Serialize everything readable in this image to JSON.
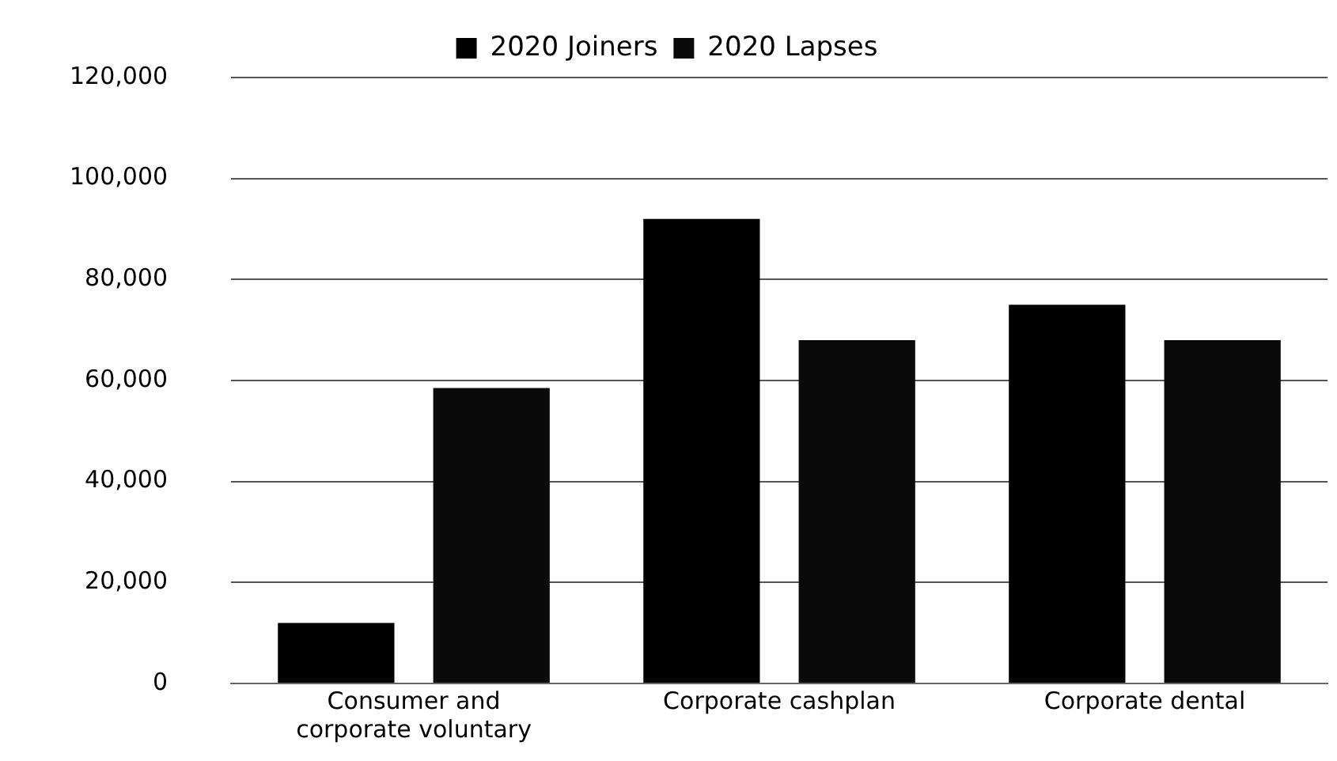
{
  "chart_data": {
    "type": "bar",
    "categories": [
      "Consumer and corporate voluntary",
      "Corporate cashplan",
      "Corporate dental"
    ],
    "series": [
      {
        "name": "2020 Joiners",
        "color": "#000000",
        "values": [
          12000,
          92000,
          75000
        ]
      },
      {
        "name": "2020 Lapses",
        "color": "#0a0a0a",
        "values": [
          58500,
          68000,
          68000
        ]
      }
    ],
    "ylim": [
      0,
      120000
    ],
    "yticks": [
      {
        "value": 0,
        "label": "0"
      },
      {
        "value": 20000,
        "label": "20,000"
      },
      {
        "value": 40000,
        "label": "40,000"
      },
      {
        "value": 60000,
        "label": "60,000"
      },
      {
        "value": 80000,
        "label": "80,000"
      },
      {
        "value": 100000,
        "label": "100,000"
      },
      {
        "value": 120000,
        "label": "120,000"
      }
    ],
    "grid": "y",
    "legend": "top"
  }
}
